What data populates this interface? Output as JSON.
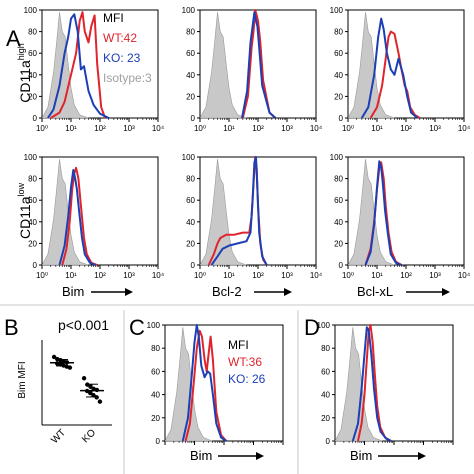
{
  "colors": {
    "wt": "#e0242c",
    "ko": "#1c3fb5",
    "isotype_fill": "#c8c8c8",
    "isotype_stroke": "#9a9a9a",
    "axis": "#000000"
  },
  "panel_labels": {
    "a": "A",
    "b": "B",
    "c": "C",
    "d": "D"
  },
  "row_labels": {
    "row1_base": "CD11a",
    "row1_sup": "high",
    "row2_base": "CD11a",
    "row2_sup": "low"
  },
  "x_markers": [
    "Bim",
    "Bcl-2",
    "Bcl-xL"
  ],
  "panel_b": {
    "pvalue": "p<0.001",
    "ylabel": "Bim MFI",
    "groups": [
      "WT",
      "KO"
    ]
  },
  "legend_a": {
    "title": "MFI",
    "wt": "WT:42",
    "ko": "KO: 23",
    "iso": "Isotype:3"
  },
  "legend_c": {
    "title": "MFI",
    "wt": "WT:36",
    "ko": "KO: 26"
  },
  "hist_xticks": [
    "10⁰",
    "10¹",
    "10²",
    "10³",
    "10⁴"
  ],
  "hist_yticks": [
    "0",
    "20",
    "40",
    "60",
    "80",
    "100"
  ],
  "chart_data": [
    {
      "id": "A-r1-bim",
      "type": "area",
      "xscale": "log",
      "xlim": [
        1,
        10000
      ],
      "ylim": [
        0,
        100
      ],
      "series": [
        {
          "name": "Isotype",
          "x": [
            1,
            1.6,
            2.5,
            3.2,
            4,
            5,
            6.3,
            8,
            10,
            13,
            20,
            40
          ],
          "values": [
            0,
            10,
            42,
            70,
            98,
            80,
            75,
            50,
            28,
            12,
            3,
            0
          ]
        },
        {
          "name": "WT",
          "x": [
            2,
            4,
            6,
            10,
            15,
            20,
            25,
            30,
            40,
            50,
            65,
            80,
            110,
            150
          ],
          "values": [
            0,
            5,
            15,
            40,
            60,
            90,
            98,
            80,
            70,
            85,
            95,
            50,
            10,
            0
          ]
        },
        {
          "name": "KO",
          "x": [
            1.6,
            2.5,
            4,
            6,
            8,
            10,
            13,
            17,
            22,
            28,
            40,
            60,
            100,
            200
          ],
          "values": [
            0,
            8,
            30,
            60,
            75,
            92,
            96,
            80,
            45,
            48,
            25,
            12,
            4,
            0
          ]
        }
      ]
    },
    {
      "id": "A-r1-bcl2",
      "type": "area",
      "xscale": "log",
      "xlim": [
        1,
        10000
      ],
      "ylim": [
        0,
        100
      ],
      "series": [
        {
          "name": "Isotype",
          "x": [
            1,
            1.6,
            2.5,
            3.2,
            4,
            5,
            6.3,
            8,
            10,
            13,
            20,
            40
          ],
          "values": [
            0,
            10,
            42,
            70,
            98,
            80,
            75,
            50,
            28,
            12,
            3,
            0
          ]
        },
        {
          "name": "WT",
          "x": [
            30,
            45,
            60,
            70,
            80,
            90,
            100,
            110,
            120,
            150,
            250,
            400
          ],
          "values": [
            0,
            20,
            65,
            80,
            100,
            95,
            90,
            80,
            70,
            35,
            5,
            0
          ]
        },
        {
          "name": "KO",
          "x": [
            28,
            42,
            55,
            65,
            75,
            85,
            95,
            110,
            140,
            250,
            400
          ],
          "values": [
            0,
            25,
            70,
            85,
            98,
            90,
            85,
            65,
            30,
            5,
            0
          ]
        }
      ]
    },
    {
      "id": "A-r1-bclxl",
      "type": "area",
      "xscale": "log",
      "xlim": [
        1,
        10000
      ],
      "ylim": [
        0,
        100
      ],
      "series": [
        {
          "name": "Isotype",
          "x": [
            1,
            1.6,
            2.5,
            3.2,
            4,
            5,
            6.3,
            8,
            10,
            13,
            20,
            40
          ],
          "values": [
            0,
            10,
            42,
            70,
            98,
            80,
            75,
            50,
            28,
            12,
            3,
            0
          ]
        },
        {
          "name": "WT",
          "x": [
            6,
            10,
            15,
            20,
            25,
            30,
            40,
            55,
            70,
            90,
            110,
            140,
            200,
            300
          ],
          "values": [
            0,
            10,
            30,
            55,
            75,
            80,
            78,
            60,
            45,
            30,
            25,
            10,
            3,
            0
          ]
        },
        {
          "name": "KO",
          "x": [
            3,
            5,
            8,
            11,
            14,
            17,
            22,
            30,
            40,
            55,
            80,
            110,
            150,
            250
          ],
          "values": [
            0,
            10,
            40,
            75,
            92,
            82,
            60,
            45,
            40,
            55,
            40,
            20,
            5,
            0
          ]
        }
      ]
    },
    {
      "id": "A-r2-bim",
      "type": "area",
      "xscale": "log",
      "xlim": [
        1,
        10000
      ],
      "ylim": [
        0,
        100
      ],
      "series": [
        {
          "name": "Isotype",
          "x": [
            1,
            1.6,
            2.5,
            3.2,
            4,
            5,
            6.3,
            8,
            10,
            13,
            20,
            40
          ],
          "values": [
            0,
            10,
            42,
            70,
            98,
            80,
            75,
            50,
            28,
            12,
            3,
            0
          ]
        },
        {
          "name": "WT",
          "x": [
            5,
            7,
            9,
            11,
            13,
            15,
            18,
            22,
            28,
            35,
            50,
            80
          ],
          "values": [
            0,
            15,
            40,
            70,
            85,
            90,
            80,
            55,
            25,
            10,
            2,
            0
          ]
        },
        {
          "name": "KO",
          "x": [
            4,
            6,
            8,
            10,
            12,
            14,
            16,
            19,
            24,
            30,
            45,
            70
          ],
          "values": [
            0,
            18,
            45,
            72,
            88,
            80,
            70,
            50,
            25,
            10,
            2,
            0
          ]
        }
      ]
    },
    {
      "id": "A-r2-bcl2",
      "type": "area",
      "xscale": "log",
      "xlim": [
        1,
        10000
      ],
      "ylim": [
        0,
        100
      ],
      "series": [
        {
          "name": "Isotype",
          "x": [
            1,
            1.6,
            2.5,
            3.2,
            4,
            5,
            6.3,
            8,
            10,
            13,
            20,
            40
          ],
          "values": [
            0,
            10,
            42,
            70,
            98,
            80,
            75,
            50,
            28,
            12,
            3,
            0
          ]
        },
        {
          "name": "WT",
          "x": [
            2,
            3,
            4,
            5,
            8,
            15,
            30,
            50,
            60,
            70,
            80,
            90,
            100,
            120,
            150,
            200
          ],
          "values": [
            0,
            10,
            20,
            25,
            28,
            28,
            30,
            30,
            45,
            75,
            100,
            90,
            55,
            20,
            5,
            0
          ]
        },
        {
          "name": "KO",
          "x": [
            2.5,
            4,
            6,
            10,
            20,
            40,
            55,
            65,
            75,
            85,
            95,
            110,
            140,
            200
          ],
          "values": [
            0,
            8,
            15,
            18,
            20,
            22,
            30,
            60,
            95,
            100,
            70,
            30,
            8,
            0
          ]
        }
      ]
    },
    {
      "id": "A-r2-bclxl",
      "type": "area",
      "xscale": "log",
      "xlim": [
        1,
        10000
      ],
      "ylim": [
        0,
        100
      ],
      "series": [
        {
          "name": "Isotype",
          "x": [
            1,
            1.6,
            2.5,
            3.2,
            4,
            5,
            6.3,
            8,
            10,
            13,
            20,
            40
          ],
          "values": [
            0,
            10,
            42,
            70,
            98,
            80,
            75,
            50,
            28,
            12,
            3,
            0
          ]
        },
        {
          "name": "WT",
          "x": [
            4,
            6,
            8,
            10,
            12,
            14,
            17,
            20,
            25,
            32,
            45,
            70
          ],
          "values": [
            0,
            15,
            40,
            70,
            90,
            95,
            80,
            55,
            30,
            12,
            3,
            0
          ]
        },
        {
          "name": "KO",
          "x": [
            4,
            6,
            8,
            10,
            12,
            14,
            16,
            19,
            24,
            30,
            45,
            70
          ],
          "values": [
            0,
            12,
            38,
            72,
            96,
            90,
            75,
            50,
            28,
            10,
            2,
            0
          ]
        }
      ]
    },
    {
      "id": "B",
      "type": "scatter",
      "ylim": [
        10,
        50
      ],
      "ylabel": "Bim MFI",
      "categories": [
        "WT",
        "KO"
      ],
      "series": [
        {
          "name": "WT",
          "values": [
            42,
            41,
            40.5,
            40,
            39.5,
            39,
            38.5,
            38,
            37.5,
            37
          ]
        },
        {
          "name": "KO",
          "values": [
            32,
            29,
            28,
            27,
            26.5,
            26,
            25,
            24,
            23,
            21
          ]
        }
      ],
      "means": [
        39.3,
        26.2
      ],
      "sd": [
        1.5,
        3.0
      ],
      "annotation": "p<0.001"
    },
    {
      "id": "C",
      "type": "area",
      "xscale": "log",
      "xlim": [
        1,
        10000
      ],
      "ylim": [
        0,
        100
      ],
      "series": [
        {
          "name": "Isotype",
          "x": [
            1,
            1.6,
            2.5,
            3.2,
            4,
            5,
            6.3,
            8,
            10,
            13,
            20,
            40
          ],
          "values": [
            0,
            10,
            42,
            70,
            98,
            80,
            75,
            50,
            28,
            12,
            3,
            0
          ]
        },
        {
          "name": "WT",
          "x": [
            5,
            7,
            9,
            12,
            15,
            18,
            22,
            26,
            30,
            35,
            42,
            55,
            80,
            120
          ],
          "values": [
            0,
            15,
            45,
            80,
            95,
            90,
            70,
            60,
            75,
            90,
            70,
            25,
            5,
            0
          ]
        },
        {
          "name": "KO",
          "x": [
            4,
            6,
            8,
            10,
            12,
            14,
            17,
            22,
            28,
            34,
            42,
            55,
            80,
            120
          ],
          "values": [
            0,
            20,
            55,
            85,
            100,
            90,
            65,
            55,
            60,
            58,
            40,
            15,
            3,
            0
          ]
        }
      ]
    },
    {
      "id": "D",
      "type": "area",
      "xscale": "log",
      "xlim": [
        1,
        10000
      ],
      "ylim": [
        0,
        100
      ],
      "series": [
        {
          "name": "Isotype",
          "x": [
            1,
            1.6,
            2.5,
            3.2,
            4,
            5,
            6.3,
            8,
            10,
            13,
            20,
            40
          ],
          "values": [
            0,
            10,
            42,
            70,
            98,
            80,
            75,
            50,
            28,
            12,
            3,
            0
          ]
        },
        {
          "name": "WT",
          "x": [
            6,
            8,
            10,
            12,
            14,
            16,
            19,
            22,
            27,
            34,
            50,
            80
          ],
          "values": [
            0,
            15,
            40,
            70,
            95,
            100,
            85,
            60,
            30,
            12,
            3,
            0
          ]
        },
        {
          "name": "KO",
          "x": [
            4,
            6,
            8,
            10,
            12,
            14,
            17,
            21,
            27,
            35,
            55,
            80
          ],
          "values": [
            0,
            15,
            45,
            75,
            98,
            95,
            75,
            45,
            20,
            8,
            2,
            0
          ]
        }
      ]
    }
  ]
}
